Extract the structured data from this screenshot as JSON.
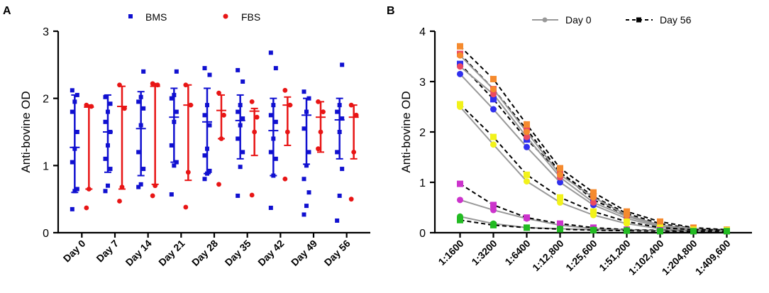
{
  "chart_data": [
    {
      "panel": "A",
      "type": "scatter",
      "ylabel": "Anti-bovine OD",
      "xlabel": "",
      "ylim": [
        0,
        3
      ],
      "yticks": [
        0,
        1,
        2,
        3
      ],
      "categories": [
        "Day 0",
        "Day 7",
        "Day 14",
        "Day 21",
        "Day 28",
        "Day 35",
        "Day 42",
        "Day 49",
        "Day 56"
      ],
      "series": [
        {
          "name": "BMS",
          "color": "#1010d0",
          "marker": "square",
          "points": [
            [
              0.35,
              0.62,
              0.65,
              1.05,
              1.25,
              1.5,
              1.8,
              1.95,
              2.05,
              2.12
            ],
            [
              0.62,
              0.7,
              0.95,
              1.1,
              1.3,
              1.5,
              1.65,
              1.8,
              1.92,
              2.02
            ],
            [
              0.68,
              0.72,
              0.95,
              1.2,
              1.6,
              1.85,
              1.95,
              2.02,
              2.4
            ],
            [
              0.57,
              1.0,
              1.05,
              1.3,
              1.65,
              1.8,
              2.0,
              2.05,
              2.4
            ],
            [
              0.8,
              0.88,
              0.92,
              1.15,
              1.25,
              1.6,
              1.75,
              1.9,
              2.35,
              2.45
            ],
            [
              0.55,
              0.98,
              1.2,
              1.4,
              1.6,
              1.7,
              1.8,
              1.9,
              2.25,
              2.42
            ],
            [
              0.37,
              0.85,
              1.1,
              1.2,
              1.4,
              1.65,
              1.75,
              1.9,
              2.45,
              2.68
            ],
            [
              0.27,
              0.4,
              0.6,
              0.8,
              1.0,
              1.2,
              1.55,
              1.8,
              2.0,
              2.1
            ],
            [
              0.18,
              0.55,
              0.95,
              1.2,
              1.5,
              1.7,
              1.8,
              1.9,
              2.5
            ]
          ],
          "mean": [
            1.27,
            1.5,
            1.55,
            1.72,
            1.65,
            1.67,
            1.52,
            1.75,
            1.68
          ],
          "sd_low": [
            0.6,
            0.9,
            0.85,
            1.05,
            0.88,
            1.1,
            0.85,
            1.02,
            1.1
          ],
          "sd_high": [
            2.05,
            2.05,
            2.1,
            2.15,
            2.15,
            2.05,
            2.0,
            2.0,
            2.0
          ]
        },
        {
          "name": "FBS",
          "color": "#e81515",
          "marker": "circle",
          "points": [
            [
              0.37,
              0.65,
              1.88,
              1.9
            ],
            [
              0.47,
              0.68,
              1.85,
              2.2
            ],
            [
              0.55,
              0.7,
              2.2,
              2.22
            ],
            [
              0.38,
              0.9,
              1.9,
              2.2
            ],
            [
              0.72,
              1.4,
              1.75,
              2.08
            ],
            [
              0.56,
              1.5,
              1.72,
              1.95
            ],
            [
              0.8,
              1.5,
              1.9,
              2.12
            ],
            [
              1.25,
              1.5,
              1.8,
              1.95
            ],
            [
              0.5,
              1.2,
              1.75,
              1.9
            ]
          ],
          "mean": [
            1.87,
            1.88,
            2.18,
            1.9,
            1.82,
            1.81,
            1.9,
            1.72,
            1.72
          ],
          "sd_low": [
            0.65,
            0.65,
            0.72,
            0.78,
            1.4,
            1.15,
            1.3,
            1.2,
            1.1
          ],
          "sd_high": [
            1.9,
            2.18,
            2.22,
            2.2,
            2.05,
            1.85,
            2.02,
            1.95,
            1.9
          ]
        }
      ],
      "legend": [
        "BMS",
        "FBS"
      ],
      "legend_position": "top"
    },
    {
      "panel": "B",
      "type": "line",
      "ylabel": "Anti-bovine OD",
      "xlabel": "",
      "ylim": [
        0,
        4
      ],
      "yticks": [
        0,
        1,
        2,
        3,
        4
      ],
      "categories": [
        "1:1600",
        "1:3200",
        "1:6400",
        "1:12,800",
        "1:25,600",
        "1:51,200",
        "1:102,400",
        "1:204,800",
        "1:409,600"
      ],
      "legend": [
        "Day 0",
        "Day 56"
      ],
      "legend_position": "top",
      "series": [
        {
          "name": "Day 0",
          "color": "#3030ee",
          "values": [
            3.15,
            2.45,
            1.7,
            1.0,
            0.55,
            0.28,
            0.12,
            0.06,
            0.04
          ]
        },
        {
          "name": "Day 56",
          "color": "#3030ee",
          "values": [
            3.35,
            2.65,
            1.85,
            1.2,
            0.65,
            0.35,
            0.15,
            0.07,
            0.05
          ]
        },
        {
          "name": "Day 0",
          "color": "#ec4a60",
          "values": [
            3.3,
            2.75,
            1.9,
            1.1,
            0.6,
            0.32,
            0.14,
            0.07,
            0.05
          ]
        },
        {
          "name": "Day 56",
          "color": "#ec4a60",
          "values": [
            3.55,
            2.85,
            2.05,
            1.2,
            0.72,
            0.38,
            0.18,
            0.08,
            0.05
          ]
        },
        {
          "name": "Day 0",
          "color": "#f58a2e",
          "values": [
            3.52,
            2.85,
            2.0,
            1.15,
            0.7,
            0.35,
            0.15,
            0.08,
            0.06
          ]
        },
        {
          "name": "Day 56",
          "color": "#f58a2e",
          "values": [
            3.7,
            3.05,
            2.15,
            1.28,
            0.8,
            0.42,
            0.22,
            0.1,
            0.06
          ]
        },
        {
          "name": "Day 0",
          "color": "#f2f21a",
          "values": [
            2.5,
            1.75,
            1.02,
            0.6,
            0.35,
            0.18,
            0.08,
            0.05,
            0.04
          ]
        },
        {
          "name": "Day 56",
          "color": "#f2f21a",
          "values": [
            2.55,
            1.9,
            1.15,
            0.7,
            0.42,
            0.22,
            0.1,
            0.06,
            0.05
          ]
        },
        {
          "name": "Day 0",
          "color": "#cc33cc",
          "values": [
            0.65,
            0.45,
            0.28,
            0.15,
            0.08,
            0.06,
            0.04,
            0.03,
            0.03
          ]
        },
        {
          "name": "Day 56",
          "color": "#cc33cc",
          "values": [
            0.97,
            0.55,
            0.3,
            0.18,
            0.1,
            0.06,
            0.05,
            0.03,
            0.03
          ]
        },
        {
          "name": "Day 0",
          "color": "#22bb22",
          "values": [
            0.32,
            0.18,
            0.1,
            0.08,
            0.06,
            0.05,
            0.04,
            0.03,
            0.03
          ]
        },
        {
          "name": "Day 56",
          "color": "#22bb22",
          "values": [
            0.25,
            0.15,
            0.1,
            0.07,
            0.05,
            0.04,
            0.03,
            0.03,
            0.03
          ]
        }
      ]
    }
  ],
  "panels": {
    "a": {
      "label": "A",
      "legend": {
        "bms": "BMS",
        "fbs": "FBS"
      }
    },
    "b": {
      "label": "B",
      "legend": {
        "day0": "Day 0",
        "day56": "Day 56"
      }
    }
  },
  "colors": {
    "bms": "#1010d0",
    "fbs": "#e81515",
    "day0_line": "#999999",
    "day56_line": "#000000"
  }
}
